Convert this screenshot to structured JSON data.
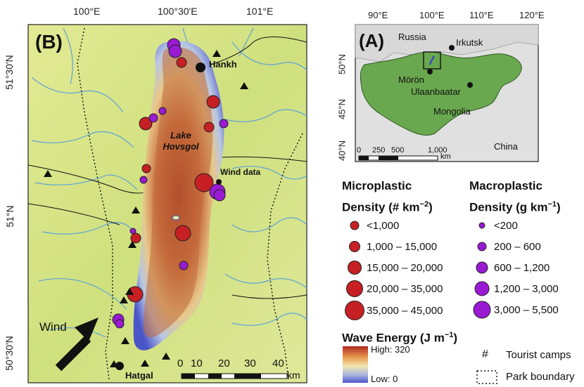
{
  "panel_b": {
    "label": "(B)",
    "top_ticks": [
      "100°E",
      "100°30'E",
      "101°E"
    ],
    "left_ticks": [
      "51°30'N",
      "51°N",
      "50°30'N"
    ],
    "places": {
      "hankh": "Hankh",
      "hatgal": "Hatgal",
      "lake": "Lake\nHovsgol",
      "wind_data": "Wind data"
    },
    "wind_label": "Wind",
    "scale": {
      "ticks": [
        "0",
        "10",
        "20",
        "30",
        "40"
      ],
      "unit": "km"
    }
  },
  "panel_a": {
    "label": "(A)",
    "top_ticks": [
      "90°E",
      "100°E",
      "110°E",
      "120°E"
    ],
    "right_ticks": [
      "50°N",
      "45°N",
      "40°N"
    ],
    "places": {
      "russia": "Russia",
      "irkutsk": "Irkutsk",
      "moron": "Mörön",
      "ulaanbaatar": "Ulaanbaatar",
      "mongolia": "Mongolia",
      "china": "China"
    },
    "scale": {
      "ticks": [
        "0",
        "250",
        "500",
        "1,000"
      ],
      "unit": "km"
    }
  },
  "legend": {
    "micro_title_1": "Microplastic",
    "micro_title_2": "Density (# km",
    "micro_title_sup": "−2",
    "micro_title_end": ")",
    "micro_items": [
      "<1,000",
      "1,000 – 15,000",
      "15,000 – 20,000",
      "20,000 – 35,000",
      "35,000 – 45,000"
    ],
    "macro_title_1": "Macroplastic",
    "macro_title_2": "Density (g km",
    "macro_title_sup": "−1",
    "macro_title_end": ")",
    "macro_items": [
      "<200",
      "200 – 600",
      "600 – 1,200",
      "1,200 – 3,000",
      "3,000 – 5,500"
    ],
    "wave_title": "Wave Energy (J m",
    "wave_sup": "−1",
    "wave_end": ")",
    "wave_high": "High: 320",
    "wave_low": "Low: 0",
    "tourist_symbol": "#",
    "tourist_label": "Tourist camps",
    "park_label": "Park boundary"
  },
  "colors": {
    "microplastic": "#c62024",
    "macroplastic": "#9a1ad4",
    "terrain": "#d6e68a",
    "mongolia": "#6aa84f",
    "lake_center": "#a83a22",
    "lake_edge": "#4a55c8"
  }
}
